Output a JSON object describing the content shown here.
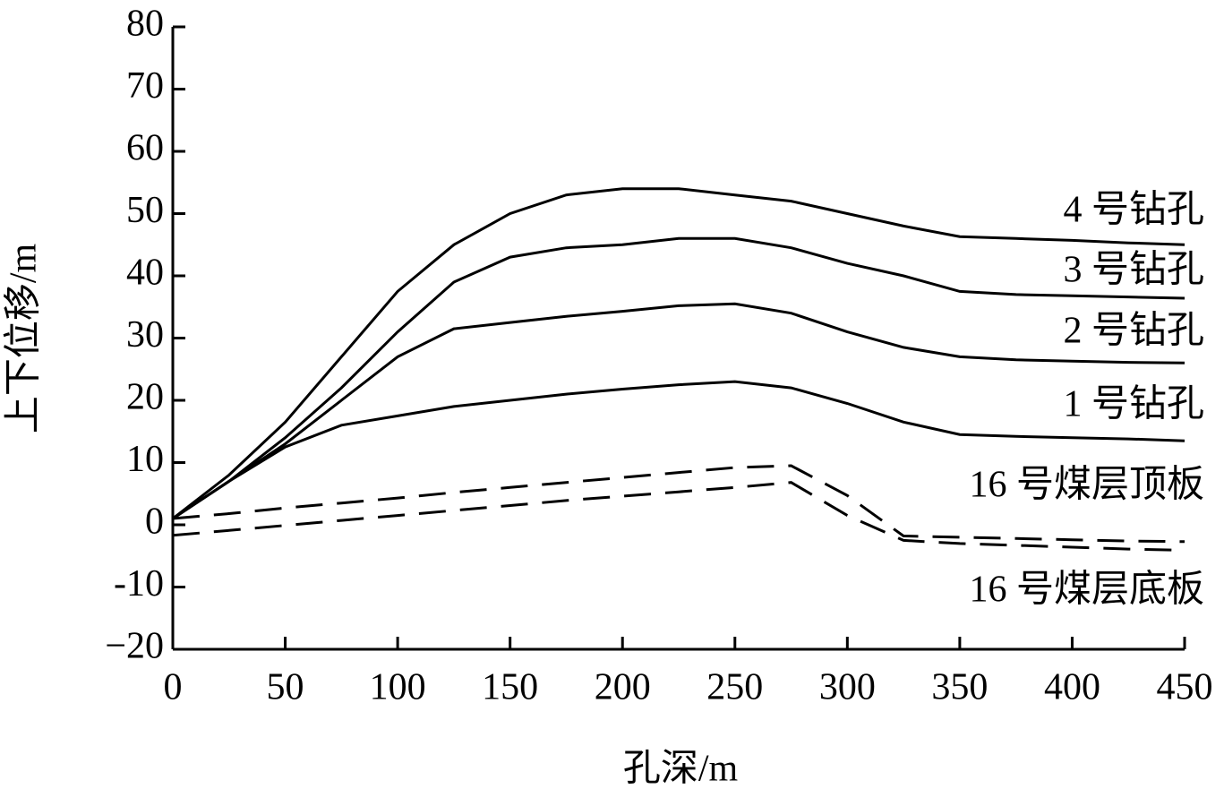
{
  "chart_data": {
    "type": "line",
    "xlabel": "孔深/m",
    "ylabel": "上下位移/m",
    "x": [
      0,
      25,
      50,
      75,
      100,
      125,
      150,
      175,
      200,
      225,
      250,
      275,
      300,
      325,
      350,
      375,
      400,
      425,
      450
    ],
    "xlim": [
      0,
      450
    ],
    "xticks": [
      0,
      50,
      100,
      150,
      200,
      250,
      300,
      350,
      400,
      450
    ],
    "ylim": [
      -20,
      80
    ],
    "yticks": [
      {
        "value": -20,
        "label": "−20"
      },
      {
        "value": -10,
        "label": "-10"
      },
      0,
      10,
      20,
      30,
      40,
      50,
      60,
      70,
      80
    ],
    "series": [
      {
        "name": "4 号钻孔",
        "color": "#000000",
        "style": "solid",
        "values": [
          1,
          8,
          16.5,
          27,
          37.5,
          45,
          50,
          53,
          54,
          54,
          53,
          52,
          50,
          48,
          46.3,
          46,
          45.7,
          45.3,
          45
        ]
      },
      {
        "name": "3 号钻孔",
        "color": "#000000",
        "style": "solid",
        "values": [
          1,
          7,
          14,
          22,
          31,
          39,
          43,
          44.5,
          45,
          46,
          46,
          44.5,
          42,
          40,
          37.5,
          37,
          36.8,
          36.6,
          36.4
        ]
      },
      {
        "name": "2 号钻孔",
        "color": "#000000",
        "style": "solid",
        "values": [
          1,
          7,
          13,
          20,
          27,
          31.5,
          32.5,
          33.5,
          34.3,
          35.2,
          35.5,
          34,
          31,
          28.5,
          27,
          26.5,
          26.3,
          26.1,
          26
        ]
      },
      {
        "name": "1 号钻孔",
        "color": "#000000",
        "style": "solid",
        "values": [
          1,
          7,
          12.5,
          16,
          17.5,
          19,
          20,
          21,
          21.8,
          22.5,
          23,
          22,
          19.5,
          16.5,
          14.5,
          14.2,
          14,
          13.8,
          13.5
        ]
      },
      {
        "name": "16 号煤层顶板",
        "color": "#000000",
        "style": "dashed",
        "values": [
          1,
          1.8,
          2.7,
          3.5,
          4.3,
          5.2,
          6,
          6.8,
          7.6,
          8.4,
          9.2,
          9.5,
          4.7,
          -1.8,
          -2,
          -2.2,
          -2.4,
          -2.6,
          -2.7
        ]
      },
      {
        "name": "16 号煤层底板",
        "color": "#000000",
        "style": "dashed",
        "values": [
          -1.7,
          -0.9,
          -0.1,
          0.7,
          1.5,
          2.3,
          3.1,
          3.9,
          4.6,
          5.3,
          6,
          6.8,
          1.5,
          -2.5,
          -3,
          -3.3,
          -3.6,
          -3.9,
          -4.1
        ]
      }
    ]
  }
}
